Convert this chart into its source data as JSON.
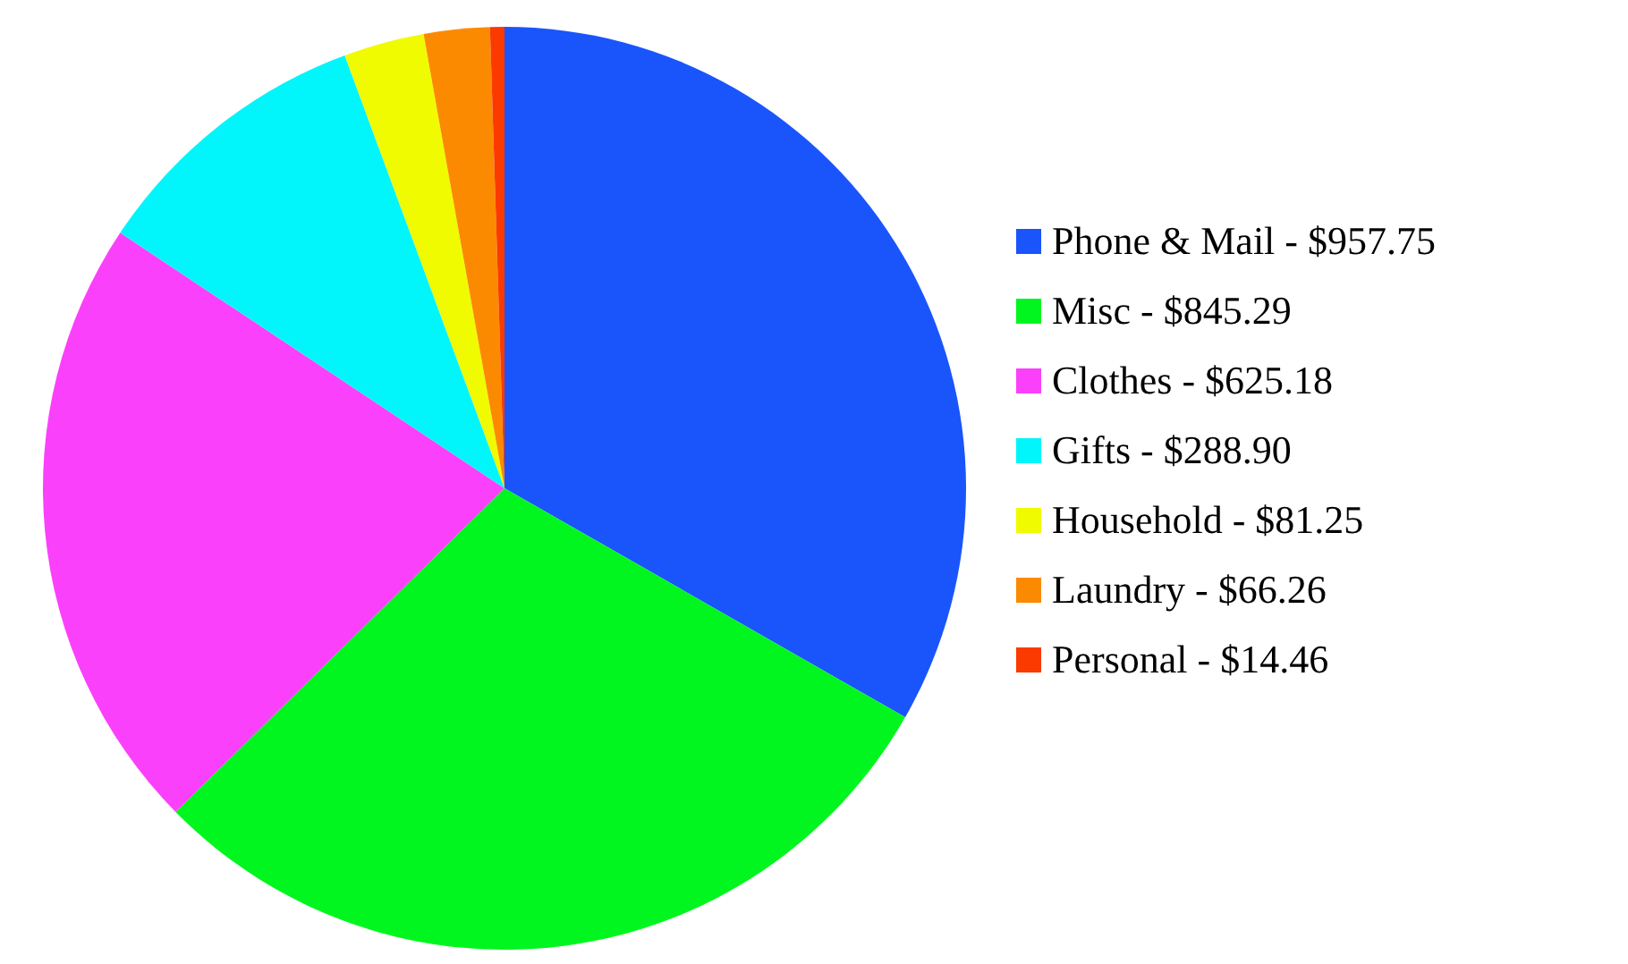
{
  "chart_data": {
    "type": "pie",
    "categories": [
      "Phone & Mail",
      "Misc",
      "Clothes",
      "Gifts",
      "Household",
      "Laundry",
      "Personal"
    ],
    "values": [
      957.75,
      845.29,
      625.18,
      288.9,
      81.25,
      66.26,
      14.46
    ],
    "value_labels": [
      "$957.75",
      "$845.29",
      "$625.18",
      "$288.90",
      "$81.25",
      "$66.26",
      "$14.46"
    ],
    "colors": [
      "#1a55fb",
      "#00f61e",
      "#fb40fb",
      "#00f6fb",
      "#f0fb00",
      "#fb8a00",
      "#fb3a00"
    ],
    "legend": "right"
  }
}
